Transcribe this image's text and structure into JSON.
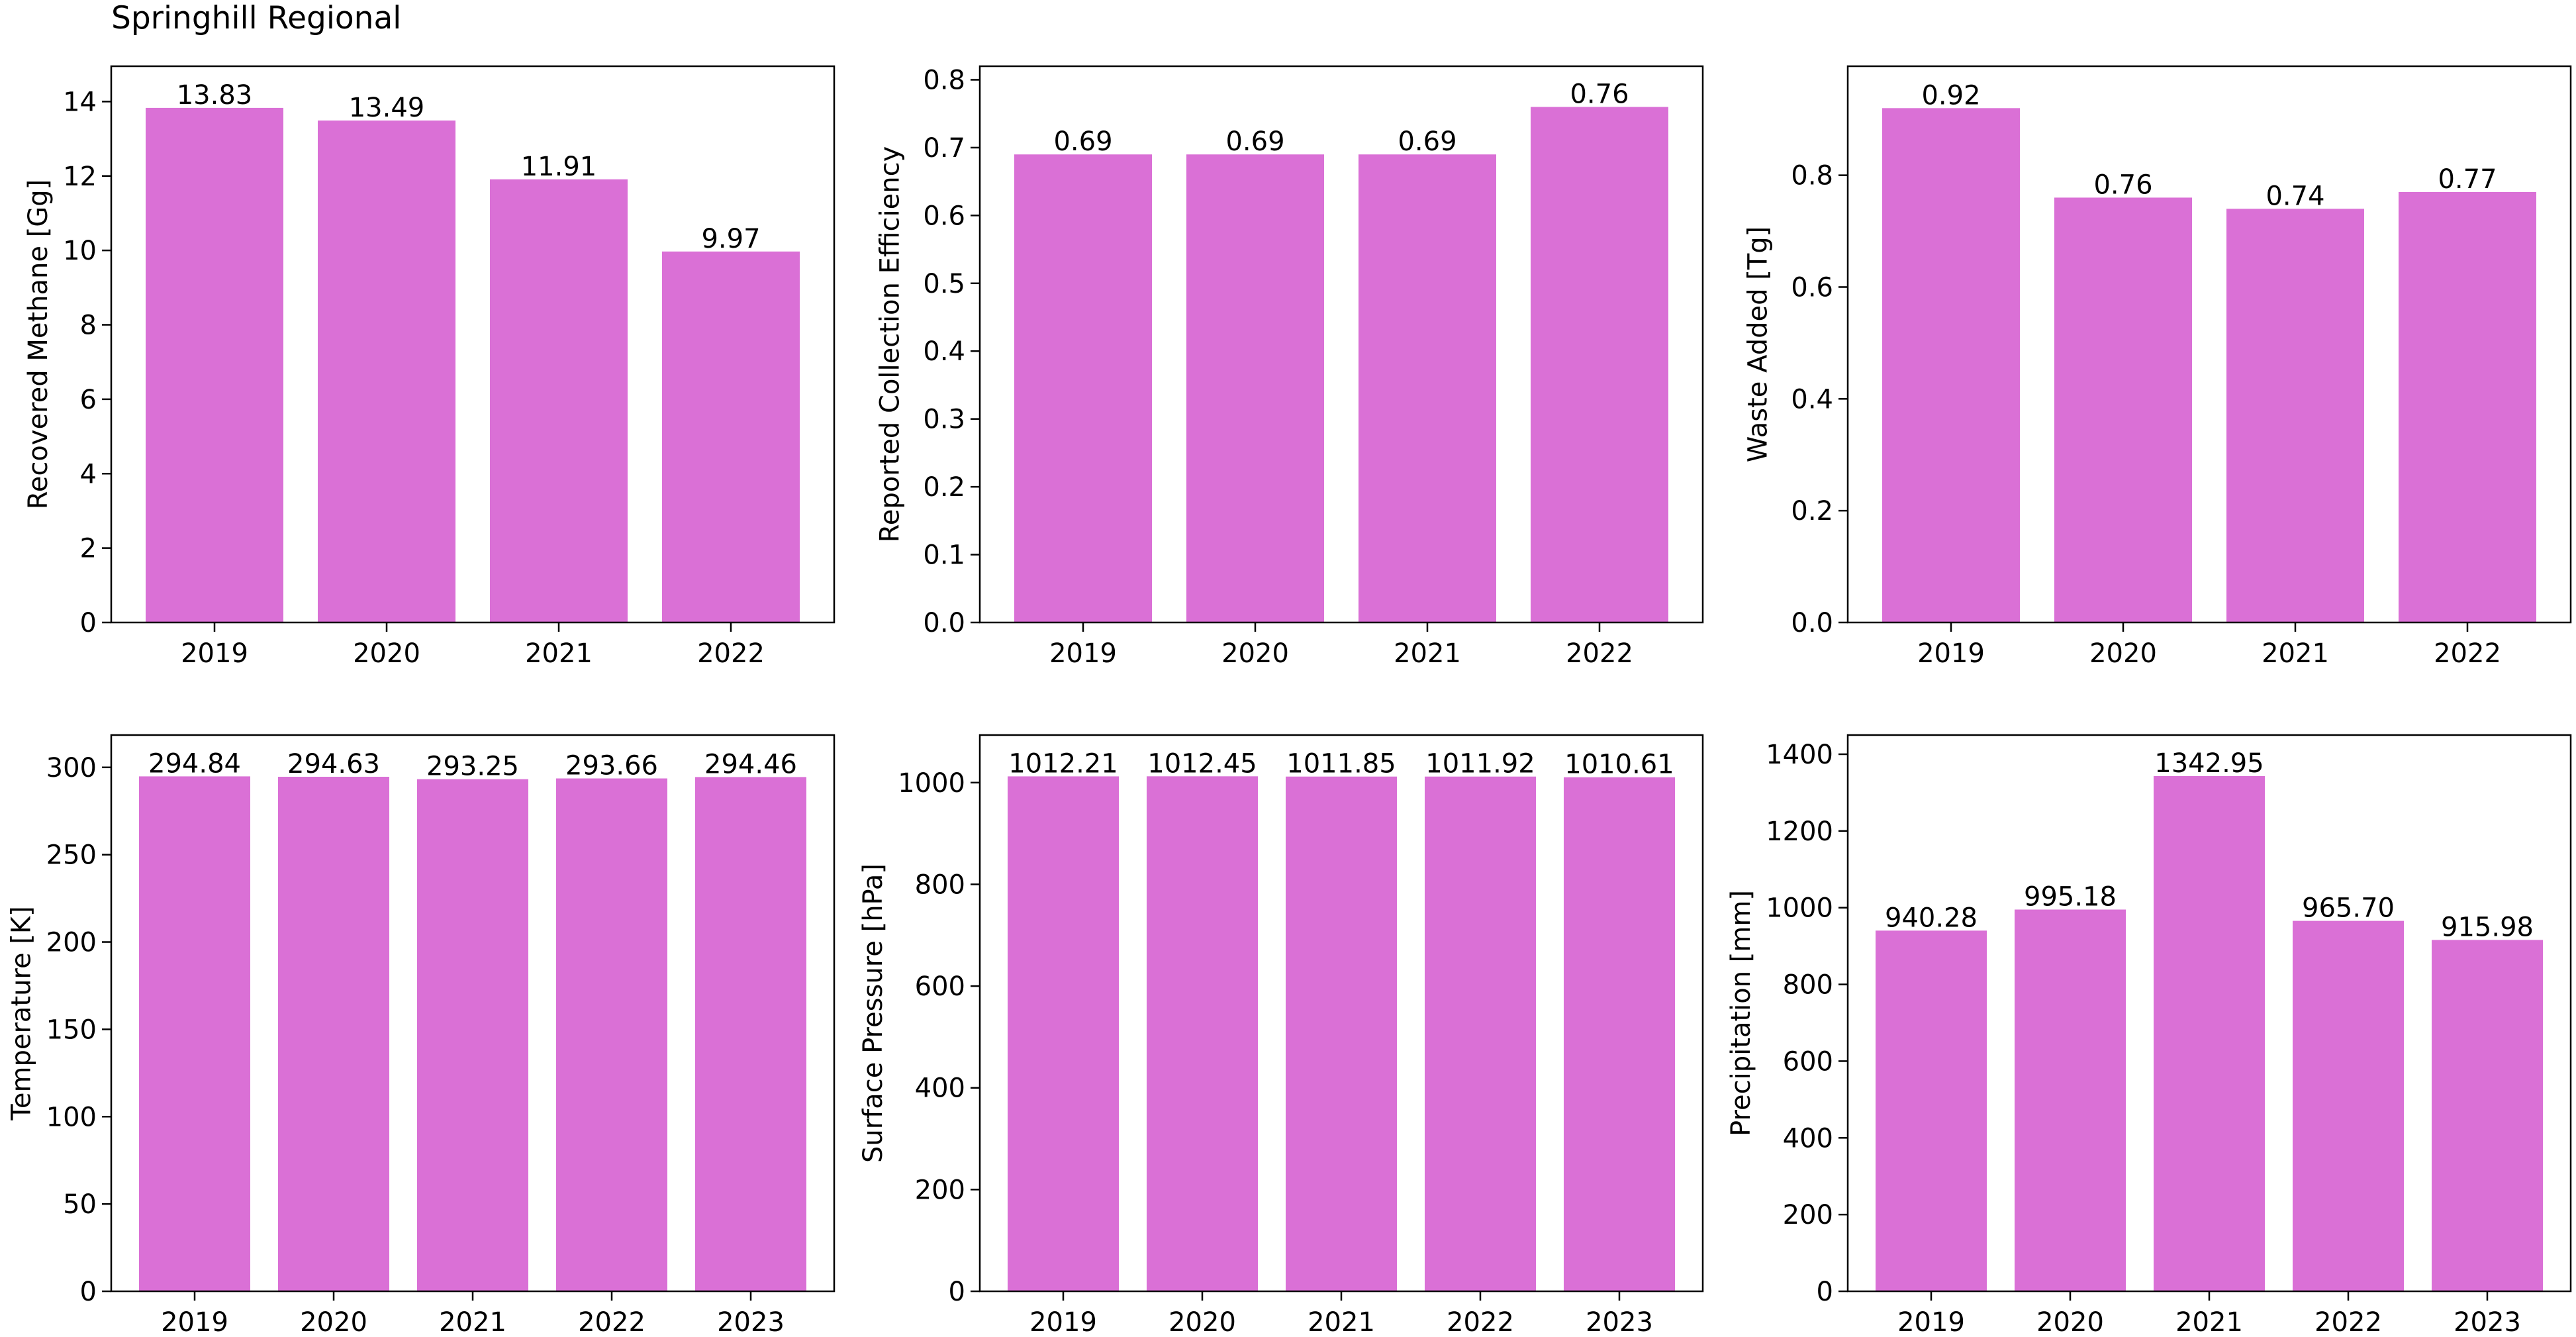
{
  "page": {
    "title": "Springhill Regional"
  },
  "colors": {
    "bar": "#da70d6",
    "axis": "#000000",
    "background": "#ffffff"
  },
  "chart_data": [
    {
      "type": "bar",
      "title": "",
      "xlabel": "",
      "ylabel": "Recovered Methane [Gg]",
      "categories": [
        "2019",
        "2020",
        "2021",
        "2022"
      ],
      "values": [
        13.83,
        13.49,
        11.91,
        9.97
      ],
      "value_labels": [
        "13.83",
        "13.49",
        "11.91",
        "9.97"
      ],
      "ylim": [
        0,
        14.95
      ],
      "yticks": [
        0,
        2,
        4,
        6,
        8,
        10,
        12,
        14
      ],
      "ytick_labels": [
        "0",
        "2",
        "4",
        "6",
        "8",
        "10",
        "12",
        "14"
      ],
      "grid": false
    },
    {
      "type": "bar",
      "title": "",
      "xlabel": "",
      "ylabel": "Reported Collection Efficiency",
      "categories": [
        "2019",
        "2020",
        "2021",
        "2022"
      ],
      "values": [
        0.69,
        0.69,
        0.69,
        0.76
      ],
      "value_labels": [
        "0.69",
        "0.69",
        "0.69",
        "0.76"
      ],
      "ylim": [
        0,
        0.82
      ],
      "yticks": [
        0,
        0.1,
        0.2,
        0.3,
        0.4,
        0.5,
        0.6,
        0.7,
        0.8
      ],
      "ytick_labels": [
        "0.0",
        "0.1",
        "0.2",
        "0.3",
        "0.4",
        "0.5",
        "0.6",
        "0.7",
        "0.8"
      ],
      "grid": false
    },
    {
      "type": "bar",
      "title": "",
      "xlabel": "",
      "ylabel": "Waste Added [Tg]",
      "categories": [
        "2019",
        "2020",
        "2021",
        "2022"
      ],
      "values": [
        0.92,
        0.76,
        0.74,
        0.77
      ],
      "value_labels": [
        "0.92",
        "0.76",
        "0.74",
        "0.77"
      ],
      "ylim": [
        0,
        0.995
      ],
      "yticks": [
        0,
        0.2,
        0.4,
        0.6,
        0.8
      ],
      "ytick_labels": [
        "0.0",
        "0.2",
        "0.4",
        "0.6",
        "0.8"
      ],
      "grid": false
    },
    {
      "type": "bar",
      "title": "",
      "xlabel": "",
      "ylabel": "Temperature [K]",
      "categories": [
        "2019",
        "2020",
        "2021",
        "2022",
        "2023"
      ],
      "values": [
        294.84,
        294.63,
        293.25,
        293.66,
        294.46
      ],
      "value_labels": [
        "294.84",
        "294.63",
        "293.25",
        "293.66",
        "294.46"
      ],
      "ylim": [
        0,
        318.5
      ],
      "yticks": [
        0,
        50,
        100,
        150,
        200,
        250,
        300
      ],
      "ytick_labels": [
        "0",
        "50",
        "100",
        "150",
        "200",
        "250",
        "300"
      ],
      "grid": false
    },
    {
      "type": "bar",
      "title": "",
      "xlabel": "",
      "ylabel": "Surface Pressure [hPa]",
      "categories": [
        "2019",
        "2020",
        "2021",
        "2022",
        "2023"
      ],
      "values": [
        1012.21,
        1012.45,
        1011.85,
        1011.92,
        1010.61
      ],
      "value_labels": [
        "1012.21",
        "1012.45",
        "1011.85",
        "1011.92",
        "1010.61"
      ],
      "ylim": [
        0,
        1093.5
      ],
      "yticks": [
        0,
        200,
        400,
        600,
        800,
        1000
      ],
      "ytick_labels": [
        "0",
        "200",
        "400",
        "600",
        "800",
        "1000"
      ],
      "grid": false
    },
    {
      "type": "bar",
      "title": "",
      "xlabel": "",
      "ylabel": "Precipitation [mm]",
      "categories": [
        "2019",
        "2020",
        "2021",
        "2022",
        "2023"
      ],
      "values": [
        940.28,
        995.18,
        1342.95,
        965.7,
        915.98
      ],
      "value_labels": [
        "940.28",
        "995.18",
        "1342.95",
        "965.70",
        "915.98"
      ],
      "ylim": [
        0,
        1450
      ],
      "yticks": [
        0,
        200,
        400,
        600,
        800,
        1000,
        1200,
        1400
      ],
      "ytick_labels": [
        "0",
        "200",
        "400",
        "600",
        "800",
        "1000",
        "1200",
        "1400"
      ],
      "grid": false
    }
  ]
}
